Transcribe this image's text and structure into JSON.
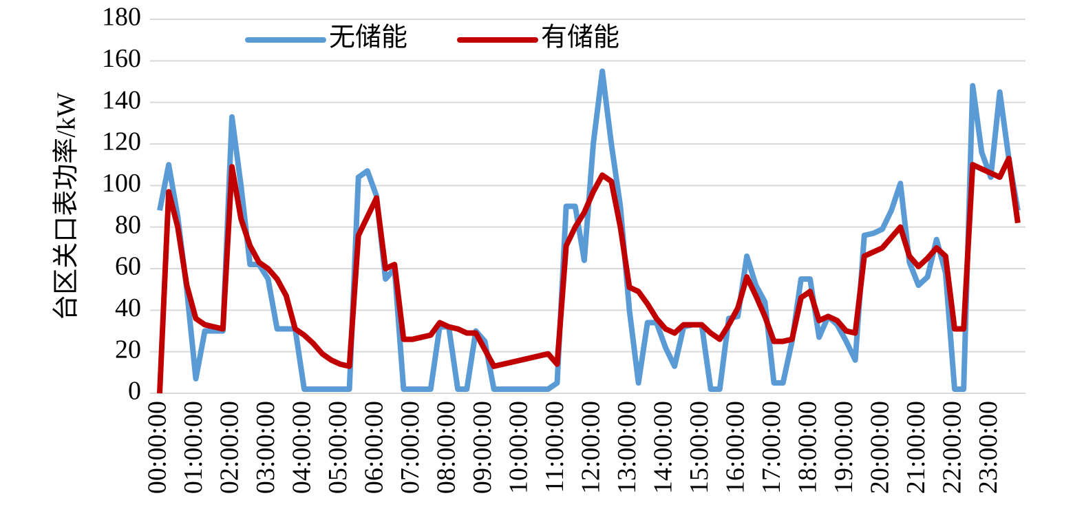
{
  "chart_data": {
    "type": "line",
    "y_label": "台区关口表功率/kW",
    "categories": [
      "00:00:00",
      null,
      null,
      null,
      "01:00:00",
      null,
      null,
      null,
      "02:00:00",
      null,
      null,
      null,
      "03:00:00",
      null,
      null,
      null,
      "04:00:00",
      null,
      null,
      null,
      "05:00:00",
      null,
      null,
      null,
      "06:00:00",
      null,
      null,
      null,
      "07:00:00",
      null,
      null,
      null,
      "08:00:00",
      null,
      null,
      null,
      "09:00:00",
      null,
      null,
      null,
      "10:00:00",
      null,
      null,
      null,
      "11:00:00",
      null,
      null,
      null,
      "12:00:00",
      null,
      null,
      null,
      "13:00:00",
      null,
      null,
      null,
      "14:00:00",
      null,
      null,
      null,
      "15:00:00",
      null,
      null,
      null,
      "16:00:00",
      null,
      null,
      null,
      "17:00:00",
      null,
      null,
      null,
      "18:00:00",
      null,
      null,
      null,
      "19:00:00",
      null,
      null,
      null,
      "20:00:00",
      null,
      null,
      null,
      "21:00:00",
      null,
      null,
      null,
      "22:00:00",
      null,
      null,
      null,
      "23:00:00",
      null,
      null,
      null
    ],
    "series": [
      {
        "name": "无储能",
        "color": "#5b9bd5",
        "values": [
          88,
          110,
          85,
          50,
          7,
          30,
          30,
          30,
          133,
          100,
          62,
          62,
          55,
          31,
          31,
          31,
          2,
          2,
          2,
          2,
          2,
          2,
          104,
          107,
          95,
          55,
          60,
          2,
          2,
          2,
          2,
          32,
          32,
          2,
          2,
          30,
          25,
          2,
          2,
          2,
          2,
          2,
          2,
          2,
          5,
          90,
          90,
          64,
          120,
          155,
          120,
          90,
          40,
          5,
          34,
          34,
          22,
          13,
          32,
          33,
          33,
          2,
          2,
          36,
          37,
          66,
          52,
          44,
          5,
          5,
          25,
          55,
          55,
          27,
          37,
          33,
          25,
          16,
          76,
          77,
          79,
          88,
          101,
          63,
          52,
          56,
          74,
          58,
          2,
          2,
          148,
          116,
          104,
          145,
          113,
          88
        ]
      },
      {
        "name": "有储能",
        "color": "#c00000",
        "values": [
          0,
          97,
          80,
          52,
          36,
          33,
          32,
          31,
          109,
          84,
          71,
          63,
          60,
          55,
          47,
          31,
          28,
          24,
          19,
          16,
          14,
          13,
          76,
          85,
          94,
          60,
          62,
          26,
          26,
          27,
          28,
          34,
          32,
          31,
          29,
          29,
          21,
          13,
          14,
          15,
          16,
          17,
          18,
          19,
          14,
          71,
          80,
          87,
          97,
          105,
          102,
          80,
          51,
          49,
          43,
          36,
          31,
          29,
          33,
          33,
          33,
          29,
          26,
          33,
          41,
          56,
          47,
          37,
          25,
          25,
          26,
          46,
          49,
          35,
          37,
          35,
          30,
          29,
          66,
          68,
          70,
          75,
          80,
          66,
          61,
          65,
          70,
          66,
          31,
          31,
          110,
          108,
          106,
          104,
          113,
          82
        ]
      }
    ],
    "ylim": [
      0,
      180
    ],
    "yticks": [
      0,
      20,
      40,
      60,
      80,
      100,
      120,
      140,
      160,
      180
    ],
    "grid": true
  }
}
